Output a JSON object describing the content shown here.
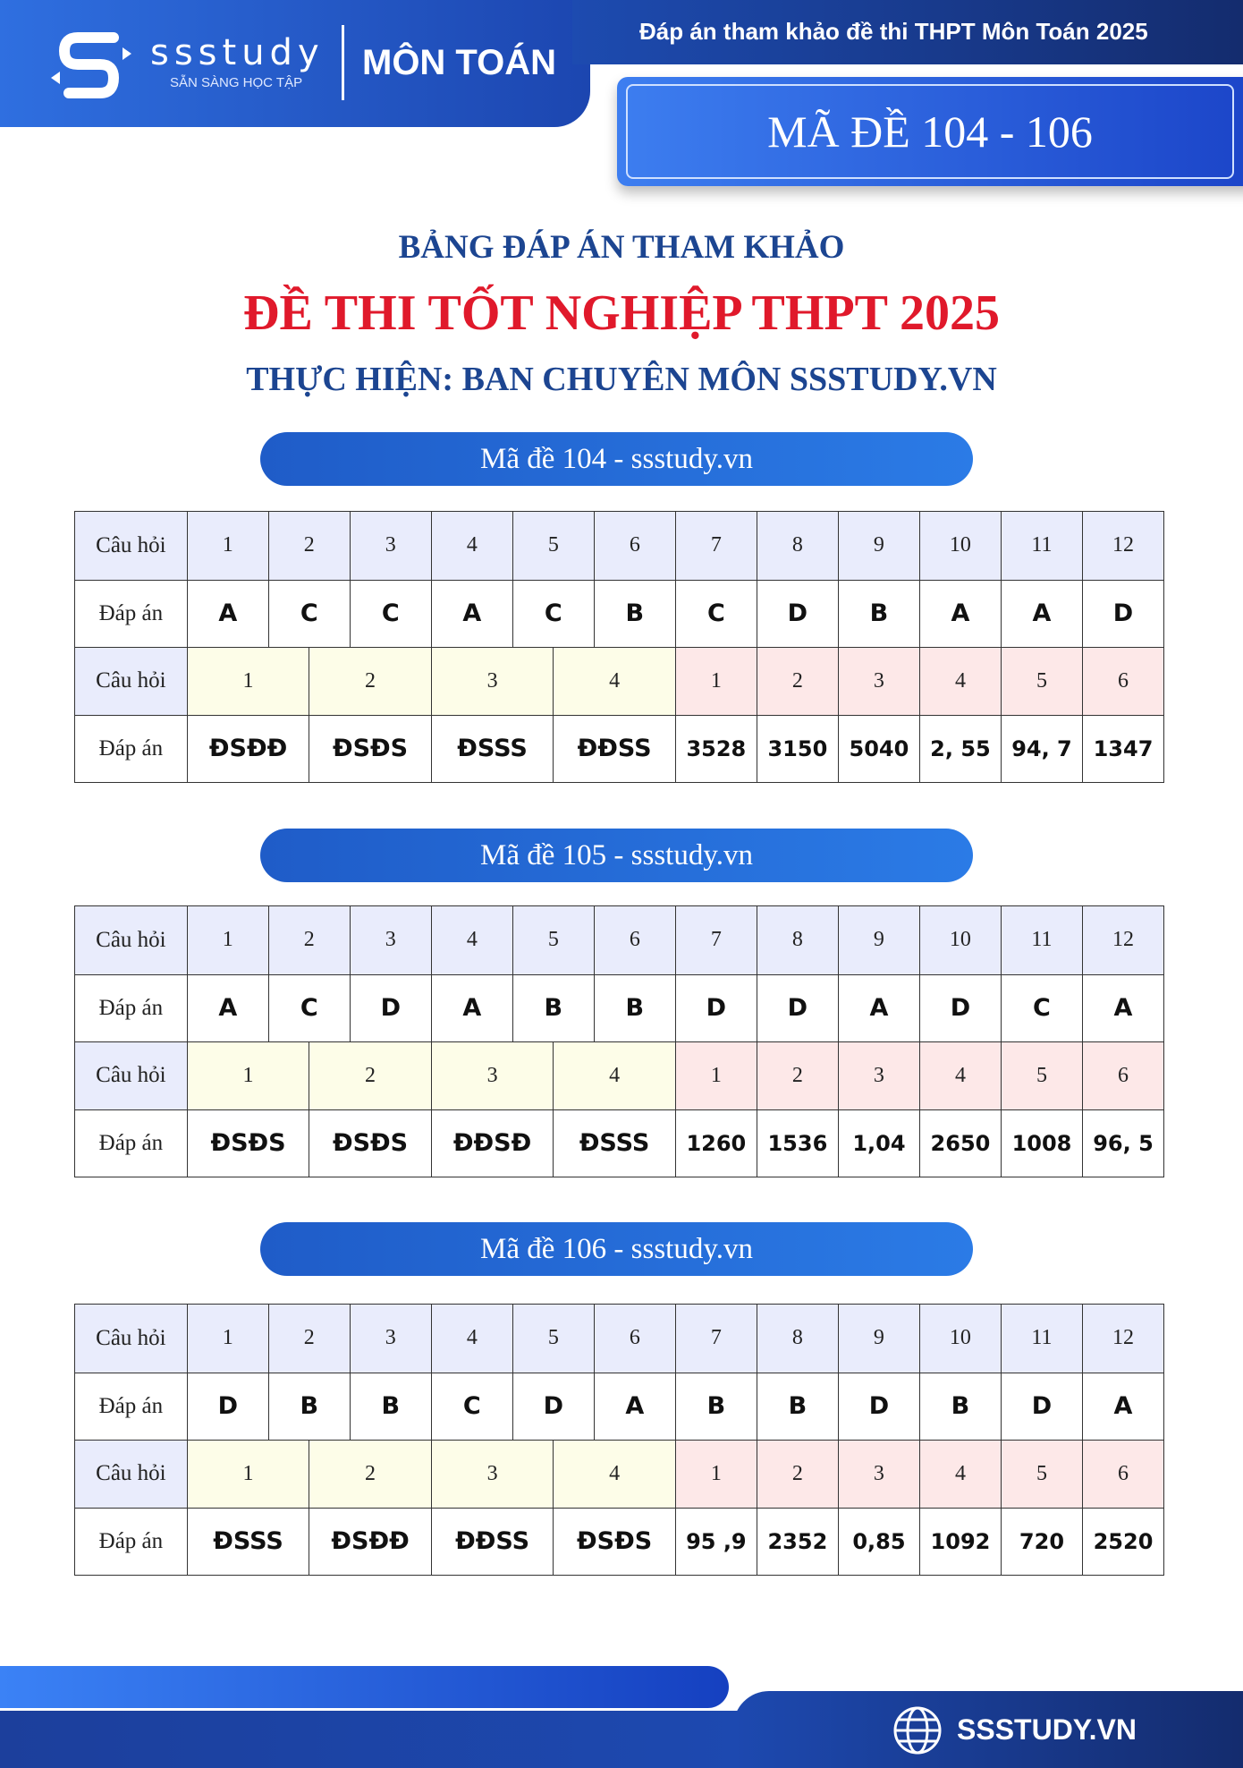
{
  "header": {
    "brand": "ssstudy",
    "tagline": "SẴN SÀNG HỌC TẬP",
    "subject": "MÔN TOÁN",
    "note": "Đáp án tham khảo đề thi THPT Môn Toán 2025",
    "codes": "MÃ ĐỀ 104 - 106",
    "brand_color": "#1f5cc8"
  },
  "titles": {
    "line1": "BẢNG ĐÁP ÁN THAM KHẢO",
    "line2": "ĐỀ THI TỐT NGHIỆP THPT 2025",
    "line3": "THỰC HIỆN: BAN CHUYÊN MÔN SSSTUDY.VN"
  },
  "labels": {
    "question": "Câu hỏi",
    "answer": "Đáp án"
  },
  "tables": [
    {
      "title": "Mã đề 104 - ssstudy.vn",
      "mc_questions": [
        "1",
        "2",
        "3",
        "4",
        "5",
        "6",
        "7",
        "8",
        "9",
        "10",
        "11",
        "12"
      ],
      "mc_answers": [
        "A",
        "C",
        "C",
        "A",
        "C",
        "B",
        "C",
        "D",
        "B",
        "A",
        "A",
        "D"
      ],
      "tf_questions": [
        "1",
        "2",
        "3",
        "4"
      ],
      "tf_answers": [
        "ĐSĐĐ",
        "ĐSĐS",
        "ĐSSS",
        "ĐĐSS"
      ],
      "sa_questions": [
        "1",
        "2",
        "3",
        "4",
        "5",
        "6"
      ],
      "sa_answers": [
        "3528",
        "3150",
        "5040",
        "2, 55",
        "94, 7",
        "1347"
      ]
    },
    {
      "title": "Mã đề 105 - ssstudy.vn",
      "mc_questions": [
        "1",
        "2",
        "3",
        "4",
        "5",
        "6",
        "7",
        "8",
        "9",
        "10",
        "11",
        "12"
      ],
      "mc_answers": [
        "A",
        "C",
        "D",
        "A",
        "B",
        "B",
        "D",
        "D",
        "A",
        "D",
        "C",
        "A"
      ],
      "tf_questions": [
        "1",
        "2",
        "3",
        "4"
      ],
      "tf_answers": [
        "ĐSĐS",
        "ĐSĐS",
        "ĐĐSĐ",
        "ĐSSS"
      ],
      "sa_questions": [
        "1",
        "2",
        "3",
        "4",
        "5",
        "6"
      ],
      "sa_answers": [
        "1260",
        "1536",
        "1,04",
        "2650",
        "1008",
        "96, 5"
      ]
    },
    {
      "title": "Mã đề 106 - ssstudy.vn",
      "mc_questions": [
        "1",
        "2",
        "3",
        "4",
        "5",
        "6",
        "7",
        "8",
        "9",
        "10",
        "11",
        "12"
      ],
      "mc_answers": [
        "D",
        "B",
        "B",
        "C",
        "D",
        "A",
        "B",
        "B",
        "D",
        "B",
        "D",
        "A"
      ],
      "tf_questions": [
        "1",
        "2",
        "3",
        "4"
      ],
      "tf_answers": [
        "ĐSSS",
        "ĐSĐĐ",
        "ĐĐSS",
        "ĐSĐS"
      ],
      "sa_questions": [
        "1",
        "2",
        "3",
        "4",
        "5",
        "6"
      ],
      "sa_answers": [
        "95 ,9",
        "2352",
        "0,85",
        "1092",
        "720",
        "2520"
      ]
    }
  ],
  "footer": {
    "site": "SSSTUDY.VN",
    "icon": "globe-icon"
  }
}
